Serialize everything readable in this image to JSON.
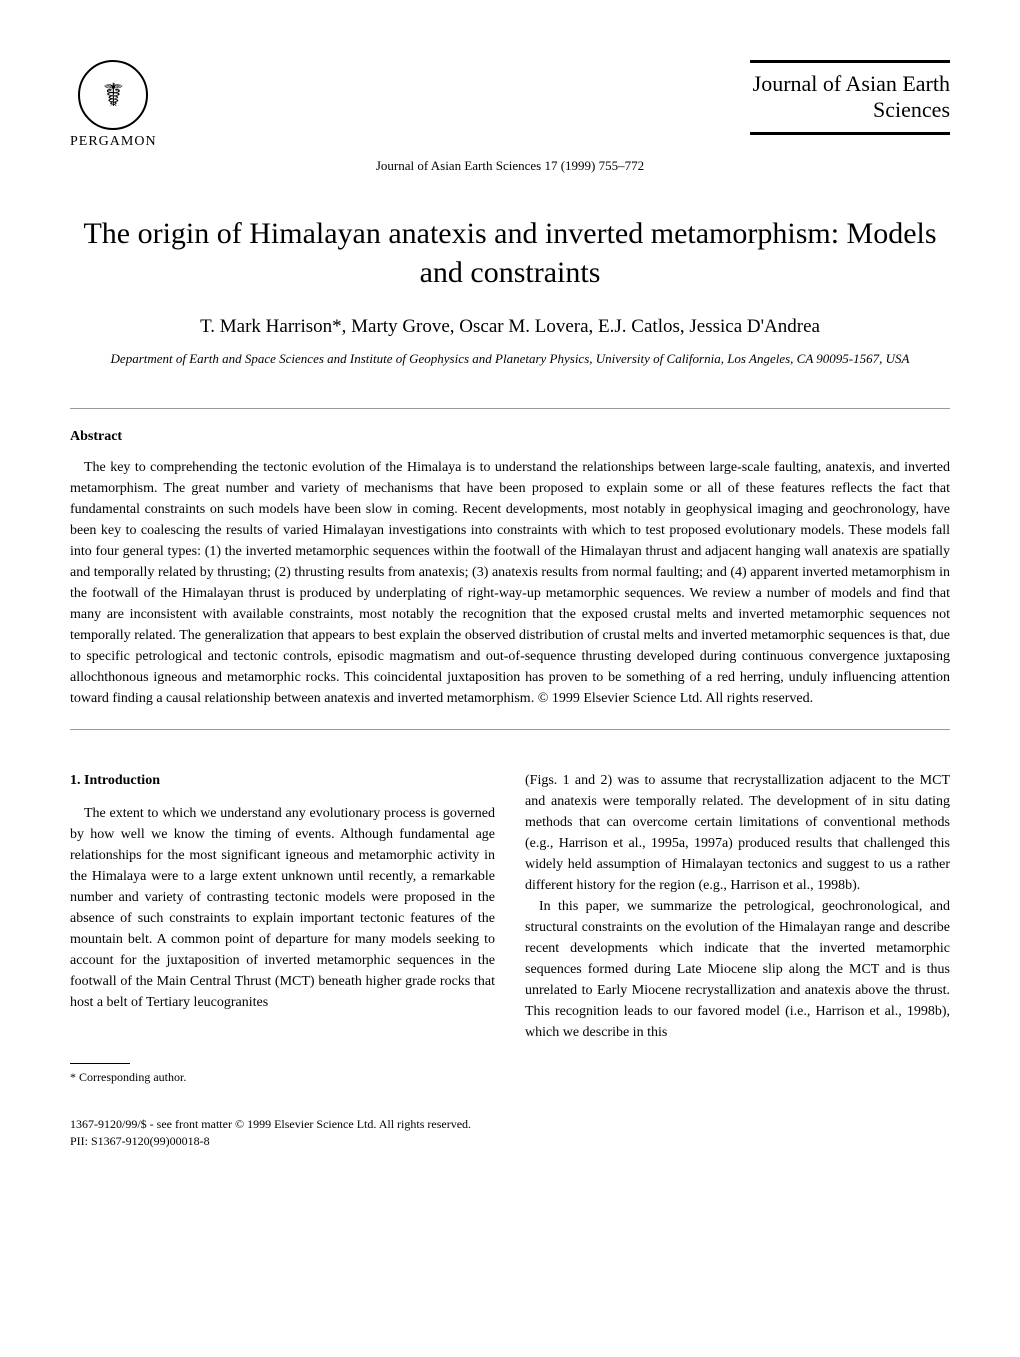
{
  "header": {
    "publisher": "PERGAMON",
    "journal_name": "Journal of Asian Earth Sciences",
    "journal_ref": "Journal of Asian Earth Sciences 17 (1999) 755–772"
  },
  "title": "The origin of Himalayan anatexis and inverted metamorphism: Models and constraints",
  "authors": "T. Mark Harrison*, Marty Grove, Oscar M. Lovera, E.J. Catlos, Jessica D'Andrea",
  "affiliation": "Department of Earth and Space Sciences and Institute of Geophysics and Planetary Physics, University of California, Los Angeles, CA 90095-1567, USA",
  "abstract": {
    "heading": "Abstract",
    "text": "The key to comprehending the tectonic evolution of the Himalaya is to understand the relationships between large-scale faulting, anatexis, and inverted metamorphism. The great number and variety of mechanisms that have been proposed to explain some or all of these features reflects the fact that fundamental constraints on such models have been slow in coming. Recent developments, most notably in geophysical imaging and geochronology, have been key to coalescing the results of varied Himalayan investigations into constraints with which to test proposed evolutionary models. These models fall into four general types: (1) the inverted metamorphic sequences within the footwall of the Himalayan thrust and adjacent hanging wall anatexis are spatially and temporally related by thrusting; (2) thrusting results from anatexis; (3) anatexis results from normal faulting; and (4) apparent inverted metamorphism in the footwall of the Himalayan thrust is produced by underplating of right-way-up metamorphic sequences. We review a number of models and find that many are inconsistent with available constraints, most notably the recognition that the exposed crustal melts and inverted metamorphic sequences not temporally related. The generalization that appears to best explain the observed distribution of crustal melts and inverted metamorphic sequences is that, due to specific petrological and tectonic controls, episodic magmatism and out-of-sequence thrusting developed during continuous convergence juxtaposing allochthonous igneous and metamorphic rocks. This coincidental juxtaposition has proven to be something of a red herring, unduly influencing attention toward finding a causal relationship between anatexis and inverted metamorphism. © 1999 Elsevier Science Ltd. All rights reserved."
  },
  "introduction": {
    "heading": "1. Introduction",
    "para1": "The extent to which we understand any evolutionary process is governed by how well we know the timing of events. Although fundamental age relationships for the most significant igneous and metamorphic activity in the Himalaya were to a large extent unknown until recently, a remarkable number and variety of contrasting tectonic models were proposed in the absence of such constraints to explain important tectonic features of the mountain belt. A common point of departure for many models seeking to account for the juxtaposition of inverted metamorphic sequences in the footwall of the Main Central Thrust (MCT) beneath higher grade rocks that host a belt of Tertiary leucogranites",
    "para2": "(Figs. 1 and 2) was to assume that recrystallization adjacent to the MCT and anatexis were temporally related. The development of in situ dating methods that can overcome certain limitations of conventional methods (e.g., Harrison et al., 1995a, 1997a) produced results that challenged this widely held assumption of Himalayan tectonics and suggest to us a rather different history for the region (e.g., Harrison et al., 1998b).",
    "para3": "In this paper, we summarize the petrological, geochronological, and structural constraints on the evolution of the Himalayan range and describe recent developments which indicate that the inverted metamorphic sequences formed during Late Miocene slip along the MCT and is thus unrelated to Early Miocene recrystallization and anatexis above the thrust. This recognition leads to our favored model (i.e., Harrison et al., 1998b), which we describe in this"
  },
  "footnote": "* Corresponding author.",
  "footer": {
    "line1": "1367-9120/99/$ - see front matter © 1999 Elsevier Science Ltd. All rights reserved.",
    "line2": "PII: S1367-9120(99)00018-8"
  }
}
